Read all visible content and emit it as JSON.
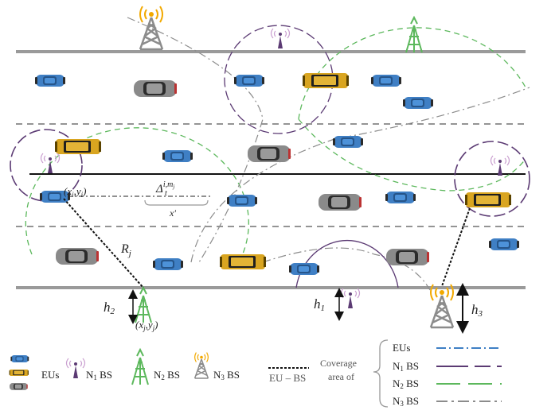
{
  "labels": {
    "eu_coord": "(x",
    "eu_coord_sub_i": "i",
    "eu_coord_y": ",y",
    "eu_coord_sub_i2": "i",
    "eu_coord_close": ")",
    "bs_coord": "(x",
    "bs_coord_sub": "j",
    "bs_coord_y": ",y",
    "bs_coord_sub2": "j",
    "bs_coord_close": ")",
    "delta": "Δ",
    "delta_sup": "i,m",
    "delta_sup_j": "j",
    "delta_sub": "t",
    "xprime": "x′",
    "radius": "R",
    "radius_sub": "j",
    "h1": "h",
    "h1_sub": "1",
    "h2": "h",
    "h2_sub": "2",
    "h3": "h",
    "h3_sub": "3"
  },
  "legend": {
    "eus": "EUs",
    "n1": "N",
    "n1_sub": "1",
    "n1_rest": " BS",
    "n2": "N",
    "n2_sub": "2",
    "n2_rest": " BS",
    "n3": "N",
    "n3_sub": "3",
    "n3_rest": " BS",
    "link": "EU – BS",
    "coverage_line1": "Coverage",
    "coverage_line2": "area of",
    "cov_eus": "EUs",
    "cov_n1": "N",
    "cov_n1_sub": "1",
    "cov_n1_rest": " BS",
    "cov_n2": "N",
    "cov_n2_sub": "2",
    "cov_n2_rest": " BS",
    "cov_n3": "N",
    "cov_n3_sub": "3",
    "cov_n3_rest": " BS"
  },
  "colors": {
    "eu_blue": "#3f7fc4",
    "taxi_yellow": "#d9a520",
    "car_gray": "#808080",
    "n1_purple": "#5b3a73",
    "n2_green": "#5cb85c",
    "n3_gray": "#8c8c8c",
    "signal_orange": "#f2a900",
    "road_gray": "#9a9a9a"
  }
}
